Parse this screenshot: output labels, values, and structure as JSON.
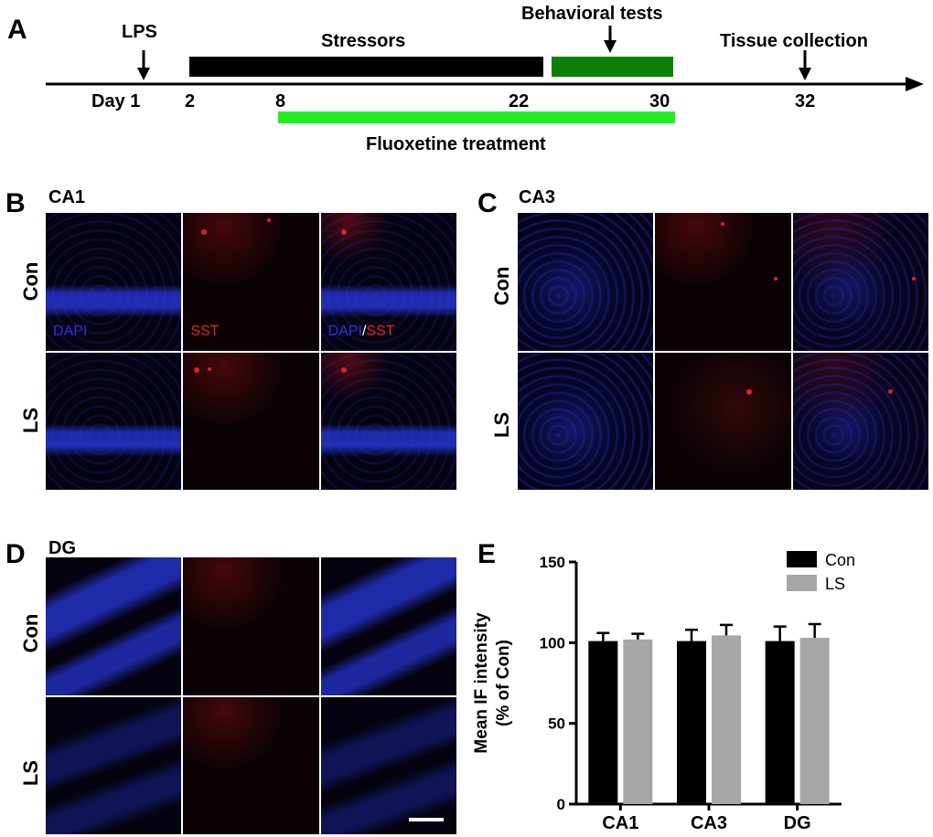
{
  "panels": {
    "A": {
      "letter": "A",
      "events": {
        "lps": "LPS",
        "stressors": "Stressors",
        "behavioral_tests": "Behavioral tests",
        "tissue_collection": "Tissue collection",
        "fluoxetine": "Fluoxetine treatment"
      },
      "day_labels": {
        "d1": "Day 1",
        "d2": "2",
        "d8": "8",
        "d22": "22",
        "d30": "30",
        "d32": "32"
      },
      "colors": {
        "stressors_bar": "#000000",
        "behavioral_bar": "#0a800a",
        "fluoxetine_bar": "#22ee22"
      }
    },
    "B": {
      "letter": "B",
      "region": "CA1",
      "rows": [
        "Con",
        "LS"
      ],
      "channel_labels": {
        "dapi": "DAPI",
        "sst": "SST",
        "merge_a": "DAPI",
        "sep": "/",
        "merge_b": "SST"
      }
    },
    "C": {
      "letter": "C",
      "region": "CA3",
      "rows": [
        "Con",
        "LS"
      ]
    },
    "D": {
      "letter": "D",
      "region": "DG",
      "rows": [
        "Con",
        "LS"
      ]
    },
    "E": {
      "letter": "E"
    }
  },
  "chart_data": {
    "type": "bar",
    "categories": [
      "CA1",
      "CA3",
      "DG"
    ],
    "series": [
      {
        "name": "Con",
        "values": [
          101,
          101,
          101
        ],
        "errors": [
          5,
          7,
          9
        ],
        "color": "#000000"
      },
      {
        "name": "LS",
        "values": [
          102,
          104.5,
          103
        ],
        "errors": [
          3.5,
          6.5,
          8.5
        ],
        "color": "#a6a6a6"
      }
    ],
    "ylabel_line1": "Mean IF intensity",
    "ylabel_line2": "(% of Con)",
    "xlabel": "",
    "ylim": [
      0,
      150
    ],
    "yticks": [
      0,
      50,
      100,
      150
    ],
    "legend_position": "top-right"
  }
}
